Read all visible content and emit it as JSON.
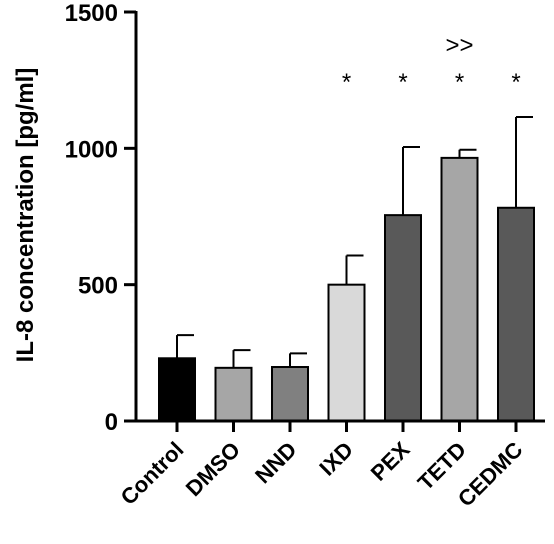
{
  "chart_data": {
    "type": "bar",
    "title": "",
    "xlabel": "",
    "ylabel": "IL-8 concentration [pg/ml]",
    "ylim": [
      0,
      1500
    ],
    "yticks": [
      0,
      500,
      1000,
      1500
    ],
    "grid": false,
    "categories": [
      "Control",
      "DMSO",
      "NND",
      "IXD",
      "PEX",
      "TETD",
      "CEDMC"
    ],
    "values": [
      230,
      195,
      198,
      500,
      755,
      965,
      782
    ],
    "error_upper": [
      315,
      260,
      248,
      607,
      1005,
      995,
      1115
    ],
    "colors": [
      "#000000",
      "#a6a6a6",
      "#808080",
      "#d9d9d9",
      "#595959",
      "#a6a6a6",
      "#595959"
    ],
    "annotations": [
      "",
      "",
      "",
      "*",
      "*",
      "*",
      "*"
    ],
    "annotations_top": [
      "",
      "",
      "",
      "",
      "",
      ">>",
      ""
    ]
  }
}
